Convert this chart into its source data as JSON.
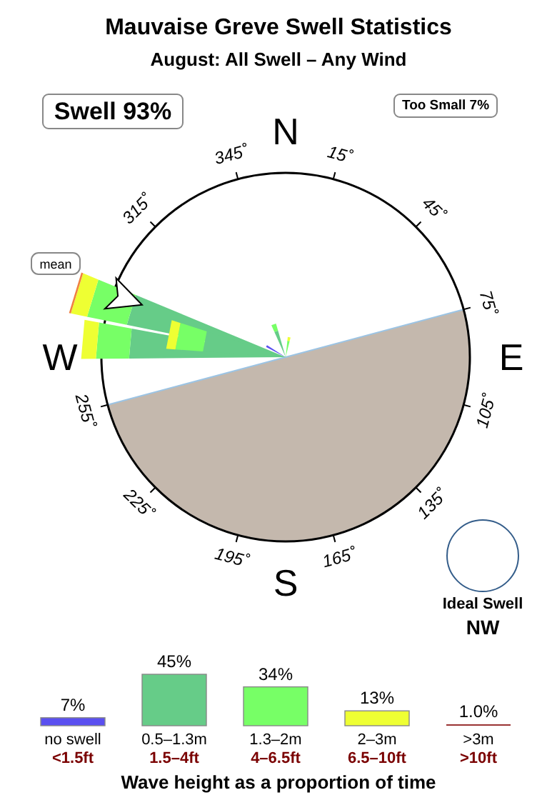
{
  "chart_data": [
    {
      "type": "other",
      "title": "Mauvaise Greve Swell Statistics",
      "subtitle": "August: All Swell – Any Wind",
      "annotations": [
        "N",
        "E",
        "S",
        "W",
        "345˚",
        "15˚",
        "45˚",
        "75˚",
        "105˚",
        "135˚",
        "165˚",
        "195˚",
        "225˚",
        "255˚",
        "315˚",
        "Swell 93%",
        "Too Small 7%",
        "mean",
        "Ideal Swell",
        "NW"
      ]
    },
    {
      "type": "bar",
      "xlabel": "Wave height as a proportion of time",
      "categories": [
        "no swell",
        "0.5–1.3m",
        "1.3–2m",
        "2–3m",
        ">3m"
      ],
      "values": [
        7,
        45,
        34,
        13,
        1.0
      ],
      "colors": [
        "#5a4ff0",
        "#66cc88",
        "#77ff66",
        "#eeff33",
        "#993333"
      ],
      "value_labels": [
        "7%",
        "45%",
        "34%",
        "13%",
        "1.0%"
      ],
      "annotations": [
        "<1.5ft",
        "1.5–4ft",
        "4–6.5ft",
        "6.5–10ft",
        ">10ft"
      ]
    }
  ]
}
